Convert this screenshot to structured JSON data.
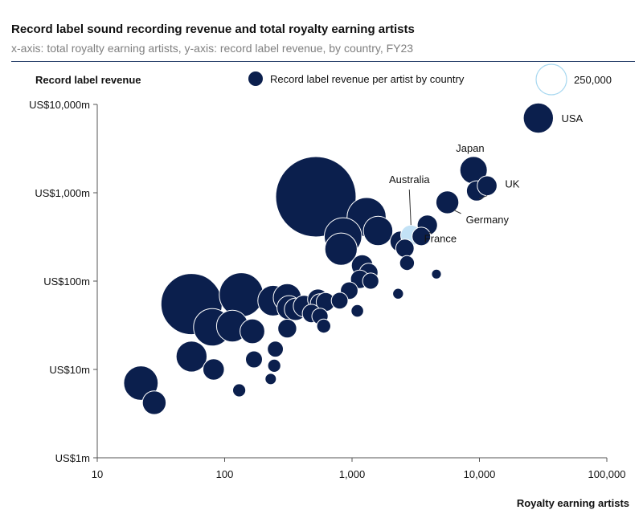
{
  "title": "Record label sound recording revenue and total royalty earning artists",
  "subtitle": "x-axis: total royalty earning artists, y-axis: record label revenue, by country, FY23",
  "chart_data": {
    "type": "scatter",
    "title": "Record label sound recording revenue and total royalty earning artists",
    "subtitle": "x-axis: total royalty earning artists, y-axis: record label revenue, by country, FY23",
    "xlabel": "Royalty earning artists",
    "ylabel": "Record label revenue",
    "xscale": "log",
    "yscale": "log",
    "xlim": [
      10,
      100000
    ],
    "ylim": [
      1,
      10000
    ],
    "xticks": [
      {
        "value": 10,
        "label": "10"
      },
      {
        "value": 100,
        "label": "100"
      },
      {
        "value": 1000,
        "label": "1,000"
      },
      {
        "value": 10000,
        "label": "10,000"
      },
      {
        "value": 100000,
        "label": "100,000"
      }
    ],
    "yticks": [
      {
        "value": 1,
        "label": "US$1m"
      },
      {
        "value": 10,
        "label": "US$10m"
      },
      {
        "value": 100,
        "label": "US$100m"
      },
      {
        "value": 1000,
        "label": "US$1,000m"
      },
      {
        "value": 10000,
        "label": "US$10,000m"
      }
    ],
    "legend": {
      "series_label": "Record label revenue per artist by country",
      "size_reference_label": "250,000",
      "placement": "top"
    },
    "colors": {
      "main": "#0b1f4d",
      "highlight": "#c3e2f6",
      "axis": "#555555"
    },
    "points": [
      {
        "x": 29000,
        "y": 7000,
        "rpa": 241000,
        "label": "USA"
      },
      {
        "x": 9000,
        "y": 1800,
        "rpa": 200000,
        "label": "Japan"
      },
      {
        "x": 11500,
        "y": 1200,
        "rpa": 104000,
        "label": "UK"
      },
      {
        "x": 9500,
        "y": 1050,
        "rpa": 110000
      },
      {
        "x": 5600,
        "y": 780,
        "rpa": 139000,
        "label": "Germany"
      },
      {
        "x": 3900,
        "y": 430,
        "rpa": 110000,
        "label": "France"
      },
      {
        "x": 2900,
        "y": 330,
        "rpa": 114000,
        "highlight": true,
        "label": "Australia"
      },
      {
        "x": 3500,
        "y": 320,
        "rpa": 91000
      },
      {
        "x": 2400,
        "y": 280,
        "rpa": 117000
      },
      {
        "x": 2600,
        "y": 235,
        "rpa": 90000
      },
      {
        "x": 2700,
        "y": 160,
        "rpa": 59000
      },
      {
        "x": 4600,
        "y": 120,
        "rpa": 26000
      },
      {
        "x": 2300,
        "y": 72,
        "rpa": 31000
      },
      {
        "x": 520,
        "y": 900,
        "rpa": 1730000
      },
      {
        "x": 1300,
        "y": 530,
        "rpa": 408000
      },
      {
        "x": 1600,
        "y": 370,
        "rpa": 231000
      },
      {
        "x": 850,
        "y": 320,
        "rpa": 376000
      },
      {
        "x": 820,
        "y": 230,
        "rpa": 280000
      },
      {
        "x": 1200,
        "y": 150,
        "rpa": 125000
      },
      {
        "x": 1350,
        "y": 125,
        "rpa": 93000
      },
      {
        "x": 1150,
        "y": 105,
        "rpa": 91000
      },
      {
        "x": 1400,
        "y": 100,
        "rpa": 71000
      },
      {
        "x": 950,
        "y": 78,
        "rpa": 82000
      },
      {
        "x": 800,
        "y": 60,
        "rpa": 75000
      },
      {
        "x": 1100,
        "y": 46,
        "rpa": 42000
      },
      {
        "x": 55,
        "y": 55,
        "rpa": 1000000
      },
      {
        "x": 135,
        "y": 70,
        "rpa": 519000
      },
      {
        "x": 80,
        "y": 30,
        "rpa": 375000
      },
      {
        "x": 115,
        "y": 31,
        "rpa": 270000
      },
      {
        "x": 165,
        "y": 27,
        "rpa": 164000
      },
      {
        "x": 240,
        "y": 60,
        "rpa": 250000
      },
      {
        "x": 310,
        "y": 65,
        "rpa": 210000
      },
      {
        "x": 320,
        "y": 50,
        "rpa": 156000
      },
      {
        "x": 360,
        "y": 48,
        "rpa": 133000
      },
      {
        "x": 420,
        "y": 52,
        "rpa": 124000
      },
      {
        "x": 480,
        "y": 43,
        "rpa": 90000
      },
      {
        "x": 540,
        "y": 62,
        "rpa": 115000
      },
      {
        "x": 560,
        "y": 56,
        "rpa": 100000
      },
      {
        "x": 620,
        "y": 58,
        "rpa": 94000
      },
      {
        "x": 560,
        "y": 40,
        "rpa": 71000
      },
      {
        "x": 600,
        "y": 31,
        "rpa": 52000
      },
      {
        "x": 310,
        "y": 29,
        "rpa": 94000
      },
      {
        "x": 55,
        "y": 14,
        "rpa": 255000
      },
      {
        "x": 82,
        "y": 10,
        "rpa": 122000
      },
      {
        "x": 22,
        "y": 7,
        "rpa": 318000
      },
      {
        "x": 28,
        "y": 4.2,
        "rpa": 150000
      },
      {
        "x": 170,
        "y": 13,
        "rpa": 76000
      },
      {
        "x": 250,
        "y": 17,
        "rpa": 68000
      },
      {
        "x": 245,
        "y": 11,
        "rpa": 45000
      },
      {
        "x": 230,
        "y": 7.8,
        "rpa": 34000
      },
      {
        "x": 130,
        "y": 5.8,
        "rpa": 45000
      }
    ]
  }
}
